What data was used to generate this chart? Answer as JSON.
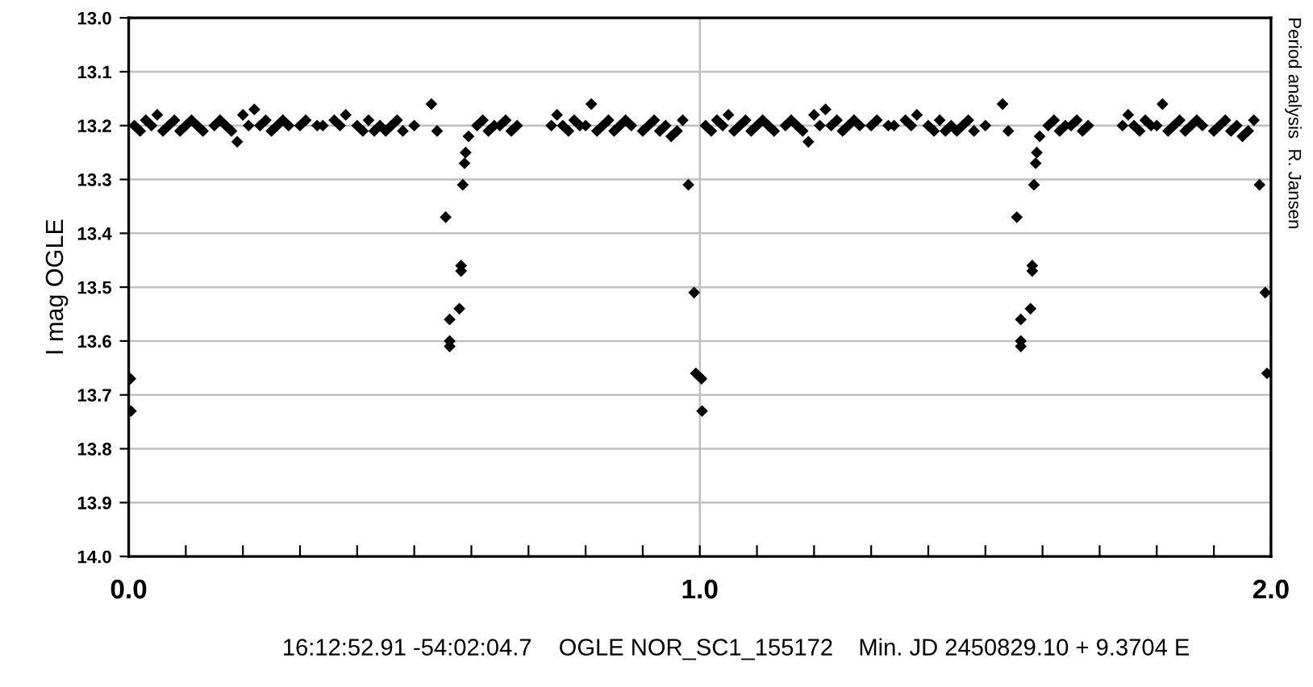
{
  "chart_data": {
    "type": "scatter",
    "ylabel": "I mag OGLE",
    "annotations": [
      "16:12:52.91 -54:02:04.7",
      "OGLE NOR_SC1_155172",
      "Min. JD 2450829.10 + 9.3704 E",
      "Period analysis  R. Jansen"
    ],
    "xlim": [
      0,
      2
    ],
    "xticks": [
      {
        "value": 0,
        "label": "0.0"
      },
      {
        "value": 0.1,
        "label": null
      },
      {
        "value": 0.2,
        "label": null
      },
      {
        "value": 0.3,
        "label": null
      },
      {
        "value": 0.4,
        "label": null
      },
      {
        "value": 0.5,
        "label": null
      },
      {
        "value": 0.6,
        "label": null
      },
      {
        "value": 0.7,
        "label": null
      },
      {
        "value": 0.8,
        "label": null
      },
      {
        "value": 0.9,
        "label": null
      },
      {
        "value": 1,
        "label": "1.0"
      },
      {
        "value": 1.1,
        "label": null
      },
      {
        "value": 1.2,
        "label": null
      },
      {
        "value": 1.3,
        "label": null
      },
      {
        "value": 1.4,
        "label": null
      },
      {
        "value": 1.5,
        "label": null
      },
      {
        "value": 1.6,
        "label": null
      },
      {
        "value": 1.7,
        "label": null
      },
      {
        "value": 1.8,
        "label": null
      },
      {
        "value": 1.9,
        "label": null
      },
      {
        "value": 2,
        "label": "2.0"
      }
    ],
    "ylim": [
      14.0,
      13.0
    ],
    "yticks": [
      {
        "value": 13.0,
        "label": "13.0"
      },
      {
        "value": 13.1,
        "label": "13.1"
      },
      {
        "value": 13.2,
        "label": "13.2"
      },
      {
        "value": 13.3,
        "label": "13.3"
      },
      {
        "value": 13.4,
        "label": "13.4"
      },
      {
        "value": 13.5,
        "label": "13.5"
      },
      {
        "value": 13.6,
        "label": "13.6"
      },
      {
        "value": 13.7,
        "label": "13.7"
      },
      {
        "value": 13.8,
        "label": "13.8"
      },
      {
        "value": 13.9,
        "label": "13.9"
      },
      {
        "value": 14.0,
        "label": "14.0"
      }
    ],
    "grid": true,
    "marker": "diamond",
    "series": [
      {
        "color": "#000000",
        "x": [
          0.003,
          0.004,
          0.01,
          0.02,
          0.03,
          0.04,
          0.05,
          0.06,
          0.07,
          0.08,
          0.09,
          0.1,
          0.11,
          0.12,
          0.13,
          0.15,
          0.16,
          0.17,
          0.18,
          0.19,
          0.2,
          0.21,
          0.22,
          0.23,
          0.24,
          0.25,
          0.26,
          0.27,
          0.28,
          0.3,
          0.31,
          0.33,
          0.34,
          0.36,
          0.37,
          0.38,
          0.4,
          0.41,
          0.42,
          0.43,
          0.44,
          0.45,
          0.46,
          0.47,
          0.48,
          0.5,
          0.53,
          0.54,
          0.555,
          0.562,
          0.562,
          0.562,
          0.579,
          0.582,
          0.582,
          0.585,
          0.588,
          0.59,
          0.595,
          0.61,
          0.62,
          0.63,
          0.64,
          0.65,
          0.66,
          0.67,
          0.68,
          0.74,
          0.75,
          0.76,
          0.77,
          0.78,
          0.79,
          0.8,
          0.81,
          0.82,
          0.83,
          0.84,
          0.85,
          0.86,
          0.87,
          0.88,
          0.9,
          0.91,
          0.92,
          0.93,
          0.94,
          0.95,
          0.96,
          0.97,
          0.98,
          0.99,
          0.993,
          1.003,
          1.004,
          1.01,
          1.02,
          1.03,
          1.04,
          1.05,
          1.06,
          1.07,
          1.08,
          1.09,
          1.1,
          1.11,
          1.12,
          1.13,
          1.15,
          1.16,
          1.17,
          1.18,
          1.19,
          1.2,
          1.21,
          1.22,
          1.23,
          1.24,
          1.25,
          1.26,
          1.27,
          1.28,
          1.3,
          1.31,
          1.33,
          1.34,
          1.36,
          1.37,
          1.38,
          1.4,
          1.41,
          1.42,
          1.43,
          1.44,
          1.45,
          1.46,
          1.47,
          1.48,
          1.5,
          1.53,
          1.54,
          1.555,
          1.562,
          1.562,
          1.562,
          1.579,
          1.582,
          1.582,
          1.585,
          1.588,
          1.59,
          1.595,
          1.61,
          1.62,
          1.63,
          1.64,
          1.65,
          1.66,
          1.67,
          1.68,
          1.74,
          1.75,
          1.76,
          1.77,
          1.78,
          1.79,
          1.8,
          1.81,
          1.82,
          1.83,
          1.84,
          1.85,
          1.86,
          1.87,
          1.88,
          1.9,
          1.91,
          1.92,
          1.93,
          1.94,
          1.95,
          1.96,
          1.97,
          1.98,
          1.99,
          1.993
        ],
        "values": [
          13.67,
          13.73,
          13.2,
          13.21,
          13.19,
          13.2,
          13.18,
          13.21,
          13.2,
          13.19,
          13.21,
          13.2,
          13.19,
          13.2,
          13.21,
          13.2,
          13.19,
          13.2,
          13.21,
          13.23,
          13.18,
          13.2,
          13.17,
          13.2,
          13.19,
          13.21,
          13.2,
          13.19,
          13.2,
          13.2,
          13.19,
          13.2,
          13.2,
          13.19,
          13.2,
          13.18,
          13.2,
          13.21,
          13.19,
          13.21,
          13.2,
          13.21,
          13.2,
          13.19,
          13.21,
          13.2,
          13.16,
          13.21,
          13.37,
          13.56,
          13.6,
          13.61,
          13.54,
          13.46,
          13.47,
          13.31,
          13.27,
          13.25,
          13.22,
          13.2,
          13.19,
          13.21,
          13.2,
          13.2,
          13.19,
          13.21,
          13.2,
          13.2,
          13.18,
          13.2,
          13.21,
          13.19,
          13.2,
          13.2,
          13.16,
          13.21,
          13.2,
          13.19,
          13.21,
          13.2,
          13.19,
          13.2,
          13.21,
          13.2,
          13.19,
          13.21,
          13.2,
          13.22,
          13.21,
          13.19,
          13.31,
          13.51,
          13.66,
          13.67,
          13.73,
          13.2,
          13.21,
          13.19,
          13.2,
          13.18,
          13.21,
          13.2,
          13.19,
          13.21,
          13.2,
          13.19,
          13.2,
          13.21,
          13.2,
          13.19,
          13.2,
          13.21,
          13.23,
          13.18,
          13.2,
          13.17,
          13.2,
          13.19,
          13.21,
          13.2,
          13.19,
          13.2,
          13.2,
          13.19,
          13.2,
          13.2,
          13.19,
          13.2,
          13.18,
          13.2,
          13.21,
          13.19,
          13.21,
          13.2,
          13.21,
          13.2,
          13.19,
          13.21,
          13.2,
          13.16,
          13.21,
          13.37,
          13.56,
          13.6,
          13.61,
          13.54,
          13.46,
          13.47,
          13.31,
          13.27,
          13.25,
          13.22,
          13.2,
          13.19,
          13.21,
          13.2,
          13.2,
          13.19,
          13.21,
          13.2,
          13.2,
          13.18,
          13.2,
          13.21,
          13.19,
          13.2,
          13.2,
          13.16,
          13.21,
          13.2,
          13.19,
          13.21,
          13.2,
          13.19,
          13.2,
          13.21,
          13.2,
          13.19,
          13.21,
          13.2,
          13.22,
          13.21,
          13.19,
          13.31,
          13.51,
          13.66
        ]
      }
    ]
  }
}
